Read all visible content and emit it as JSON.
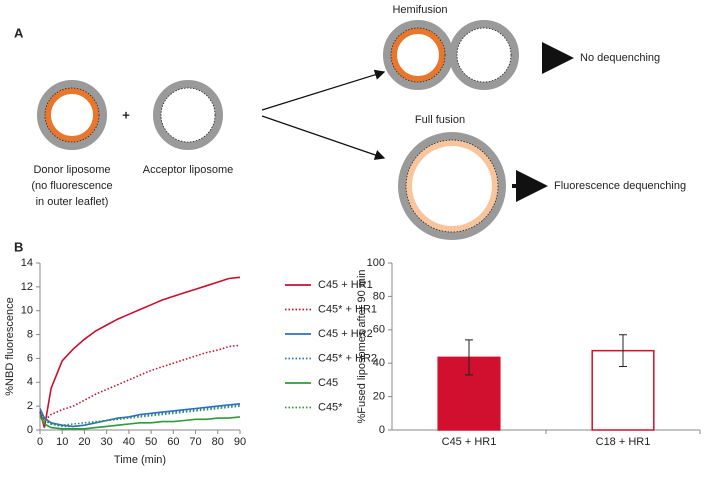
{
  "panel_a": {
    "label": "A",
    "donor_label": "Donor liposome",
    "donor_note_1": "(no fluorescence",
    "donor_note_2": "in outer leaflet)",
    "plus": "+",
    "acceptor_label": "Acceptor liposome",
    "hemifusion_label": "Hemifusion",
    "hemifusion_result": "No dequenching",
    "full_fusion_label": "Full fusion",
    "full_fusion_result": "Fluorescence dequenching"
  },
  "panel_b": {
    "label": "B"
  },
  "chart_data": [
    {
      "type": "line",
      "x_label": "Time (min)",
      "y_label": "%NBD fluorescence",
      "x": [
        0,
        2,
        5,
        10,
        15,
        20,
        25,
        30,
        35,
        40,
        45,
        50,
        55,
        60,
        65,
        70,
        75,
        80,
        85,
        90
      ],
      "series": [
        {
          "name": "C45 + HR1",
          "color": "#c8102e",
          "style": "solid",
          "values": [
            1.5,
            0.2,
            3.5,
            5.8,
            6.8,
            7.6,
            8.3,
            8.8,
            9.3,
            9.7,
            10.1,
            10.5,
            10.9,
            11.2,
            11.5,
            11.8,
            12.1,
            12.4,
            12.7,
            12.8
          ]
        },
        {
          "name": "C45* + HR1",
          "color": "#c8102e",
          "style": "dotted",
          "values": [
            1.5,
            0.8,
            1.3,
            1.7,
            2.0,
            2.5,
            3.0,
            3.4,
            3.8,
            4.2,
            4.6,
            5.0,
            5.3,
            5.6,
            5.9,
            6.2,
            6.5,
            6.7,
            7.0,
            7.1
          ]
        },
        {
          "name": "C45 + HR2",
          "color": "#2e6fc0",
          "style": "solid",
          "values": [
            1.8,
            1.0,
            0.6,
            0.4,
            0.3,
            0.4,
            0.6,
            0.8,
            1.0,
            1.1,
            1.3,
            1.4,
            1.5,
            1.6,
            1.7,
            1.8,
            1.9,
            2.0,
            2.1,
            2.2
          ]
        },
        {
          "name": "C45* + HR2",
          "color": "#2e6fc0",
          "style": "dotted",
          "values": [
            1.6,
            0.9,
            0.5,
            0.3,
            0.3,
            0.4,
            0.6,
            0.8,
            0.9,
            1.1,
            1.2,
            1.3,
            1.4,
            1.5,
            1.6,
            1.7,
            1.8,
            1.9,
            2.0,
            2.1
          ]
        },
        {
          "name": "C45",
          "color": "#2e9a3a",
          "style": "solid",
          "values": [
            1.2,
            0.5,
            0.2,
            0.1,
            0.1,
            0.1,
            0.2,
            0.3,
            0.4,
            0.5,
            0.6,
            0.6,
            0.7,
            0.7,
            0.8,
            0.9,
            0.9,
            1.0,
            1.0,
            1.1
          ]
        },
        {
          "name": "C45*",
          "color": "#2e9a3a",
          "style": "dotted",
          "values": [
            1.3,
            0.8,
            0.5,
            0.4,
            0.5,
            0.6,
            0.7,
            0.8,
            0.9,
            1.0,
            1.1,
            1.2,
            1.3,
            1.4,
            1.5,
            1.6,
            1.7,
            1.8,
            1.9,
            2.0
          ]
        }
      ],
      "xlim": [
        0,
        90
      ],
      "xticks": [
        0,
        10,
        20,
        30,
        40,
        50,
        60,
        70,
        80,
        90
      ],
      "ylim": [
        0,
        14
      ],
      "yticks": [
        0,
        2,
        4,
        6,
        8,
        10,
        12,
        14
      ],
      "grid": false,
      "legend": "right"
    },
    {
      "type": "bar",
      "y_label": "%Fused liposomes after 90 min",
      "categories": [
        "C45 + HR1",
        "C18 + HR1"
      ],
      "values": [
        43.5,
        47.5
      ],
      "errors": [
        10.5,
        9.5
      ],
      "colors": [
        "#d0102e",
        "#ffffff"
      ],
      "edgecolor": "#d0102e",
      "ylim": [
        0,
        100
      ],
      "yticks": [
        0,
        20,
        40,
        60,
        80,
        100
      ],
      "grid": false
    }
  ]
}
